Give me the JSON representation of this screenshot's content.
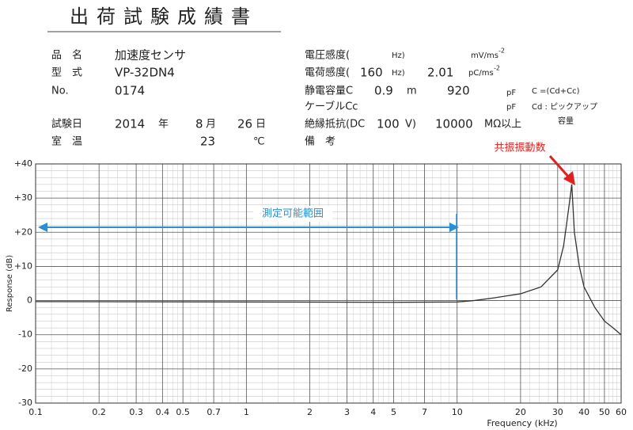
{
  "header": {
    "title": "出荷試験成績書"
  },
  "left": {
    "name": {
      "label": "品　名",
      "value": "加速度センサ"
    },
    "model": {
      "label": "型　式",
      "value": "VP-32DN4"
    },
    "number": {
      "label": "No.",
      "value": "0174"
    },
    "date": {
      "label": "試験日",
      "year": "2014",
      "year_unit": "年",
      "month": "8",
      "month_unit": "月",
      "day": "26",
      "day_unit": "日"
    },
    "temperature": {
      "label": "室　温",
      "value": "23",
      "unit": "℃"
    }
  },
  "right": {
    "voltage_sensitivity": {
      "label": "電圧感度(",
      "freq_unit": "Hz)",
      "unit": "mV/ms",
      "exponent": "-2"
    },
    "charge_sensitivity": {
      "label": "電荷感度(",
      "freq": "160",
      "freq_unit": "Hz)",
      "value": "2.01",
      "unit": "pC/ms",
      "exponent": "-2"
    },
    "capacitance": {
      "label": "静電容量C",
      "length": "0.9",
      "length_unit": "m",
      "value": "920",
      "unit": "pF",
      "note": "C =(Cd+Cc)"
    },
    "cable": {
      "label": "ケーブルCc",
      "unit": "pF",
      "note": "Cd : ピックアップ",
      "note2": "容量"
    },
    "insulation": {
      "label": "絶縁抵抗(DC",
      "voltage": "100",
      "voltage_unit": "V)",
      "value": "10000",
      "unit": "MΩ以上"
    },
    "remarks": {
      "label": "備　考"
    }
  },
  "chart_data": {
    "type": "line",
    "log_x": true,
    "grid": true,
    "color": "#333333",
    "x_label": "Frequency (kHz)",
    "y_label": "Response (dB)",
    "x": [
      0.1,
      1,
      5,
      10,
      12,
      15,
      20,
      25,
      30,
      32,
      33,
      34,
      35,
      36,
      38,
      40,
      45,
      50,
      55,
      60
    ],
    "values": [
      -0.3,
      -0.4,
      -0.5,
      -0.4,
      0,
      0.8,
      2,
      4,
      9,
      16,
      22,
      28,
      34,
      20,
      10,
      4,
      -2,
      -6,
      -8,
      -10
    ],
    "xlim": [
      0.1,
      60
    ],
    "xticks": [
      0.1,
      0.2,
      0.3,
      0.4,
      0.5,
      0.7,
      1,
      2,
      3,
      4,
      5,
      7,
      10,
      20,
      30,
      40,
      50,
      60
    ],
    "ylim": [
      -30,
      40
    ],
    "yticks": [
      {
        "value": 40,
        "label": "+40"
      },
      {
        "value": 30,
        "label": "+30"
      },
      {
        "value": 20,
        "label": "+20"
      },
      {
        "value": 10,
        "label": "+10"
      },
      0,
      -10,
      -20,
      -30
    ],
    "annotations": {
      "resonance": "共振振動数",
      "range": "測定可能範囲"
    }
  }
}
